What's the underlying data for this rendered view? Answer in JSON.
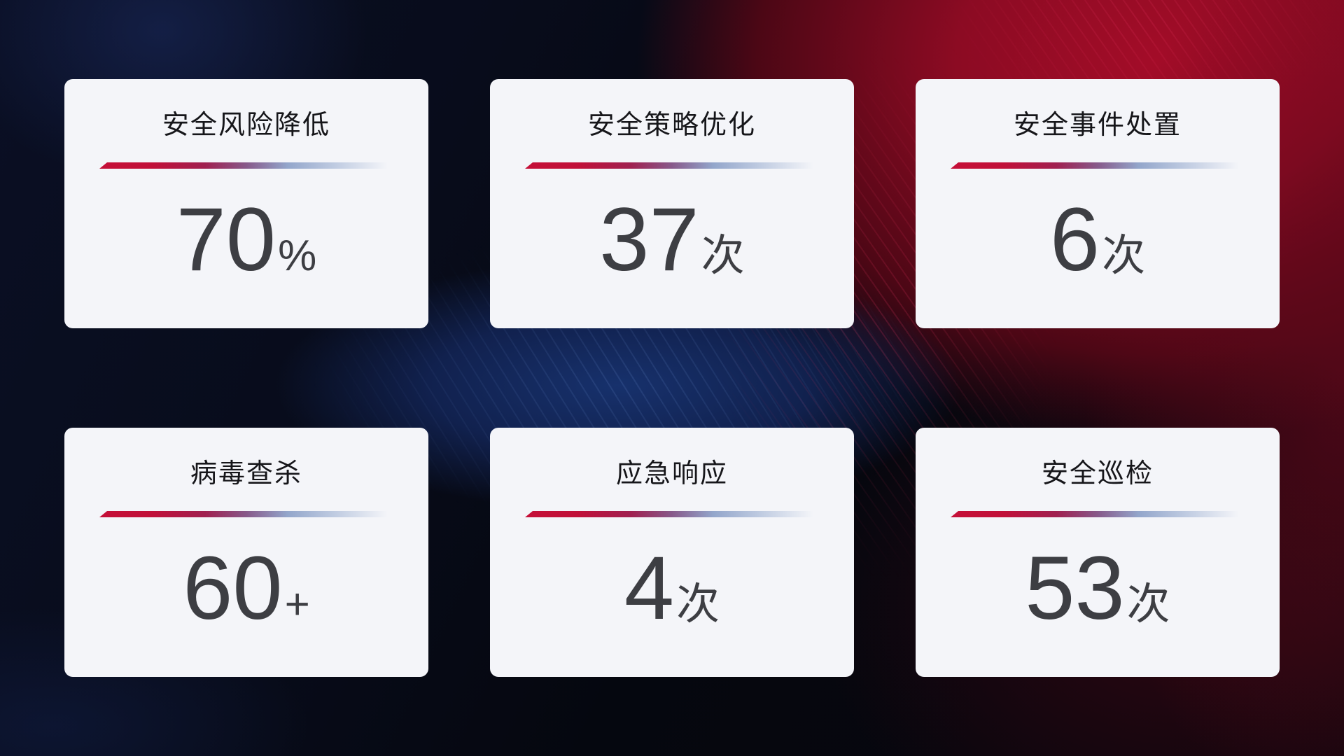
{
  "cards": [
    {
      "title": "安全风险降低",
      "value": "70",
      "unit": "%"
    },
    {
      "title": "安全策略优化",
      "value": "37",
      "unit": "次"
    },
    {
      "title": "安全事件处置",
      "value": "6",
      "unit": "次"
    },
    {
      "title": "病毒查杀",
      "value": "60",
      "unit": "+"
    },
    {
      "title": "应急响应",
      "value": "4",
      "unit": "次"
    },
    {
      "title": "安全巡检",
      "value": "53",
      "unit": "次"
    }
  ],
  "colors": {
    "accent_red": "#c50f38",
    "accent_blue": "#aebbd8",
    "card_background": "#f4f5f9",
    "title_text": "#16161a",
    "value_text": "#3d3e43",
    "background_navy": "#0a0f24",
    "background_red": "#a30c28",
    "background_mid_blue": "#17316c"
  }
}
